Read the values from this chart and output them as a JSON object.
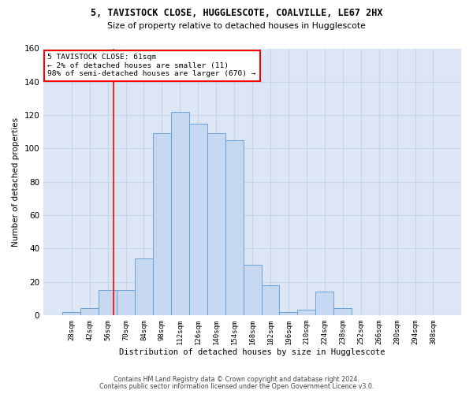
{
  "title1": "5, TAVISTOCK CLOSE, HUGGLESCOTE, COALVILLE, LE67 2HX",
  "title2": "Size of property relative to detached houses in Hugglescote",
  "xlabel": "Distribution of detached houses by size in Hugglescote",
  "ylabel": "Number of detached properties",
  "footer1": "Contains HM Land Registry data © Crown copyright and database right 2024.",
  "footer2": "Contains public sector information licensed under the Open Government Licence v3.0.",
  "bin_labels": [
    "28sqm",
    "42sqm",
    "56sqm",
    "70sqm",
    "84sqm",
    "98sqm",
    "112sqm",
    "126sqm",
    "140sqm",
    "154sqm",
    "168sqm",
    "182sqm",
    "196sqm",
    "210sqm",
    "224sqm",
    "238sqm",
    "252sqm",
    "266sqm",
    "280sqm",
    "294sqm",
    "308sqm"
  ],
  "bar_values": [
    2,
    4,
    15,
    15,
    34,
    109,
    122,
    115,
    109,
    105,
    30,
    18,
    2,
    3,
    14,
    4,
    0,
    0,
    0,
    0,
    0
  ],
  "bar_color": "#c5d8f0",
  "bar_edge_color": "#5b9bd5",
  "vline_x": 2.33,
  "annotation_line1": "5 TAVISTOCK CLOSE: 61sqm",
  "annotation_line2": "← 2% of detached houses are smaller (11)",
  "annotation_line3": "98% of semi-detached houses are larger (670) →",
  "annotation_box_color": "white",
  "annotation_box_edge_color": "red",
  "vline_color": "red",
  "ylim_max": 160,
  "yticks": [
    0,
    20,
    40,
    60,
    80,
    100,
    120,
    140,
    160
  ],
  "grid_color": "#c8d4e8",
  "bg_color": "#dce6f5"
}
